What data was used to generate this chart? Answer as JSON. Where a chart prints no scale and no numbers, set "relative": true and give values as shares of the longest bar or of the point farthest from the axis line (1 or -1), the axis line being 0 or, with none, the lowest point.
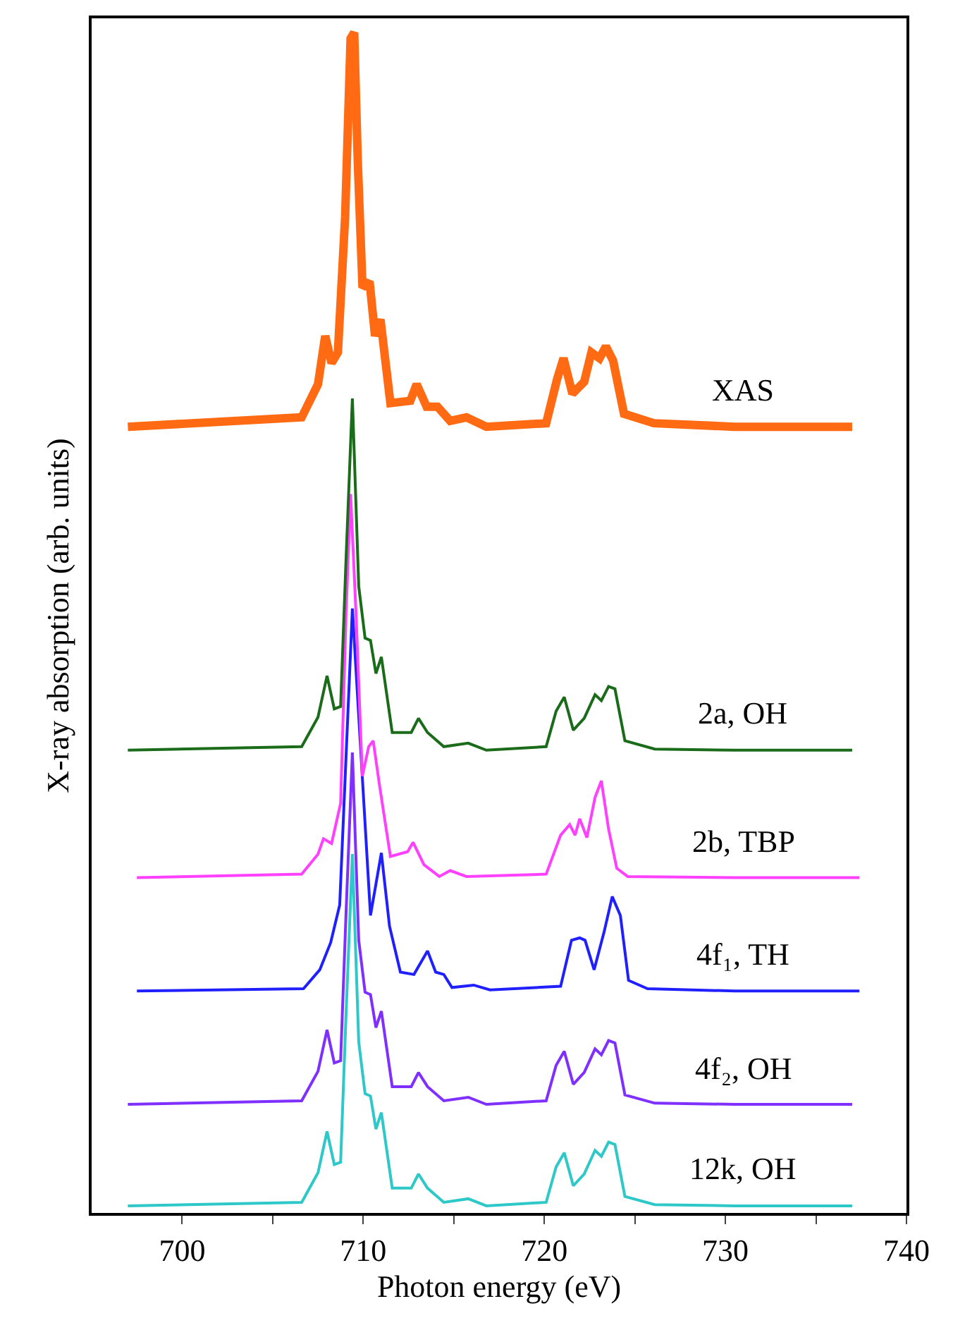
{
  "chart_data": {
    "type": "line",
    "relative": true,
    "xlabel": "Photon energy (eV)",
    "ylabel": "X-ray absorption (arb. units)",
    "xlim": [
      695,
      740
    ],
    "xticks": [
      700,
      {
        "value": 705,
        "label": null
      },
      710,
      {
        "value": 715,
        "label": null
      },
      720,
      {
        "value": 725,
        "label": null
      },
      730,
      {
        "value": 735,
        "label": null
      },
      740
    ],
    "grid": false,
    "legend": false,
    "marker": "none",
    "line_style": "solid",
    "series": [
      {
        "name": "XAS",
        "color": "#ff6a13",
        "x": [
          697.0,
          706.6,
          707.5,
          707.9,
          708.25,
          708.6,
          709.0,
          709.3,
          709.5,
          709.7,
          709.96,
          710.35,
          710.65,
          710.95,
          711.5,
          712.6,
          712.95,
          713.5,
          714.1,
          714.8,
          715.7,
          716.8,
          720.1,
          720.7,
          721.06,
          721.55,
          722.2,
          722.6,
          723.05,
          723.4,
          723.8,
          724.4,
          726.05,
          730.5,
          737.0
        ],
        "values": [
          0.666,
          0.674,
          0.702,
          0.743,
          0.72,
          0.729,
          0.844,
          0.995,
          1.0,
          0.89,
          0.784,
          0.789,
          0.743,
          0.757,
          0.686,
          0.688,
          0.702,
          0.683,
          0.683,
          0.671,
          0.674,
          0.666,
          0.669,
          0.706,
          0.724,
          0.694,
          0.704,
          0.729,
          0.724,
          0.734,
          0.722,
          0.677,
          0.669,
          0.666,
          0.666
        ]
      },
      {
        "name": "2a, OH",
        "color": "#1a6b1a",
        "x": [
          697.0,
          706.6,
          707.5,
          708.0,
          708.4,
          708.75,
          709.05,
          709.4,
          709.75,
          710.1,
          710.4,
          710.7,
          711.0,
          711.6,
          712.65,
          713.05,
          713.55,
          714.45,
          715.8,
          716.8,
          720.1,
          720.65,
          721.1,
          721.6,
          722.2,
          722.8,
          723.15,
          723.55,
          723.9,
          724.45,
          726.1,
          730.5,
          737.0
        ],
        "values": [
          0.392,
          0.395,
          0.42,
          0.455,
          0.427,
          0.429,
          0.554,
          0.69,
          0.531,
          0.487,
          0.485,
          0.457,
          0.471,
          0.407,
          0.407,
          0.419,
          0.407,
          0.395,
          0.398,
          0.392,
          0.395,
          0.425,
          0.437,
          0.409,
          0.419,
          0.439,
          0.434,
          0.446,
          0.444,
          0.4,
          0.393,
          0.392,
          0.392
        ]
      },
      {
        "name": "2b, TBP",
        "color": "#ff40ff",
        "x": [
          697.5,
          706.6,
          707.5,
          707.8,
          708.25,
          708.75,
          709.05,
          709.3,
          709.6,
          709.95,
          710.3,
          710.55,
          710.9,
          711.5,
          712.45,
          712.75,
          713.35,
          714.2,
          714.8,
          715.7,
          720.1,
          720.9,
          721.4,
          721.7,
          721.95,
          722.35,
          722.8,
          723.15,
          723.55,
          724.0,
          724.6,
          730.5,
          737.4
        ],
        "values": [
          0.284,
          0.287,
          0.304,
          0.317,
          0.313,
          0.347,
          0.508,
          0.609,
          0.508,
          0.37,
          0.395,
          0.4,
          0.362,
          0.302,
          0.306,
          0.314,
          0.295,
          0.285,
          0.29,
          0.285,
          0.287,
          0.32,
          0.329,
          0.32,
          0.334,
          0.318,
          0.352,
          0.366,
          0.325,
          0.292,
          0.285,
          0.284,
          0.284
        ]
      },
      {
        "name": "4f₁, TH",
        "color": "#2020ff",
        "x": [
          697.5,
          706.7,
          707.6,
          708.2,
          708.7,
          709.4,
          710.4,
          711.0,
          711.45,
          712.05,
          712.8,
          713.55,
          714.0,
          714.45,
          714.9,
          716.1,
          717.0,
          720.9,
          721.5,
          721.95,
          722.25,
          722.75,
          723.3,
          723.75,
          724.2,
          724.65,
          725.7,
          730.5,
          737.4
        ],
        "values": [
          0.188,
          0.19,
          0.206,
          0.229,
          0.261,
          0.512,
          0.252,
          0.305,
          0.243,
          0.204,
          0.202,
          0.222,
          0.204,
          0.202,
          0.191,
          0.193,
          0.189,
          0.192,
          0.231,
          0.233,
          0.231,
          0.206,
          0.238,
          0.268,
          0.252,
          0.197,
          0.19,
          0.188,
          0.188
        ]
      },
      {
        "name": "4f₂, OH",
        "color": "#7f2fff",
        "x": [
          697.0,
          706.6,
          707.5,
          708.0,
          708.4,
          708.75,
          709.05,
          709.4,
          709.75,
          710.1,
          710.4,
          710.7,
          711.0,
          711.6,
          712.65,
          713.05,
          713.55,
          714.45,
          715.8,
          716.8,
          720.1,
          720.65,
          721.1,
          721.6,
          722.2,
          722.8,
          723.15,
          723.55,
          723.9,
          724.45,
          726.1,
          730.5,
          737.0
        ],
        "values": [
          0.092,
          0.095,
          0.12,
          0.155,
          0.127,
          0.129,
          0.254,
          0.39,
          0.231,
          0.187,
          0.185,
          0.157,
          0.171,
          0.107,
          0.107,
          0.119,
          0.107,
          0.095,
          0.098,
          0.092,
          0.095,
          0.125,
          0.137,
          0.109,
          0.119,
          0.139,
          0.134,
          0.146,
          0.144,
          0.1,
          0.093,
          0.092,
          0.092
        ]
      },
      {
        "name": "12k, OH",
        "color": "#2ec8c8",
        "x": [
          697.0,
          706.6,
          707.5,
          708.0,
          708.4,
          708.75,
          709.05,
          709.4,
          709.75,
          710.1,
          710.4,
          710.7,
          711.0,
          711.6,
          712.65,
          713.05,
          713.55,
          714.45,
          715.8,
          716.8,
          720.1,
          720.65,
          721.1,
          721.6,
          722.2,
          722.8,
          723.15,
          723.55,
          723.9,
          724.45,
          726.1,
          730.5,
          737.0
        ],
        "values": [
          0.006,
          0.009,
          0.034,
          0.069,
          0.041,
          0.043,
          0.168,
          0.304,
          0.145,
          0.101,
          0.099,
          0.071,
          0.085,
          0.021,
          0.021,
          0.033,
          0.021,
          0.009,
          0.012,
          0.006,
          0.009,
          0.039,
          0.051,
          0.023,
          0.033,
          0.053,
          0.048,
          0.06,
          0.058,
          0.014,
          0.007,
          0.006,
          0.006
        ]
      }
    ]
  }
}
